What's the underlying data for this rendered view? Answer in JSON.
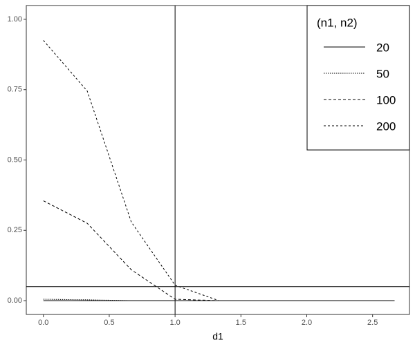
{
  "chart_data": {
    "type": "line",
    "x_label": "d1",
    "x": [
      0,
      0.333,
      0.667,
      1,
      1.333,
      1.667,
      2,
      2.333,
      2.667
    ],
    "series": [
      {
        "name": "20",
        "color": "#000000",
        "linestyle": "solid",
        "values": [
          0,
          0,
          0,
          0,
          0,
          0,
          0,
          0,
          0
        ]
      },
      {
        "name": "50",
        "color": "#000000",
        "linestyle": "dotted",
        "values": [
          0.005,
          0.003,
          0,
          0,
          0,
          0,
          0,
          0,
          0
        ]
      },
      {
        "name": "100",
        "color": "#000000",
        "linestyle": "dashed",
        "values": [
          0.355,
          0.275,
          0.11,
          0.005,
          0,
          0,
          0,
          0,
          0
        ]
      },
      {
        "name": "200",
        "color": "#000000",
        "linestyle": "longdash",
        "values": [
          0.925,
          0.745,
          0.28,
          0.055,
          0,
          0,
          0,
          0,
          0
        ]
      }
    ],
    "xlim": [
      -0.13,
      2.78
    ],
    "ylim": [
      -0.049,
      1.049
    ],
    "xticks": [
      {
        "value": 0,
        "label": "0.0"
      },
      {
        "value": 0.5,
        "label": "0.5"
      },
      {
        "value": 1,
        "label": "1.0"
      },
      {
        "value": 1.5,
        "label": "1.5"
      },
      {
        "value": 2,
        "label": "2.0"
      },
      {
        "value": 2.5,
        "label": "2.5"
      }
    ],
    "yticks": [
      {
        "value": 0,
        "label": "0.00"
      },
      {
        "value": 0.25,
        "label": "0.25"
      },
      {
        "value": 0.5,
        "label": "0.50"
      },
      {
        "value": 0.75,
        "label": "0.75"
      },
      {
        "value": 1,
        "label": "1.00"
      }
    ],
    "vline": 1,
    "hline": 0.05,
    "legend_title": "(n1, n2)",
    "legend": "top-right",
    "grid": false
  }
}
